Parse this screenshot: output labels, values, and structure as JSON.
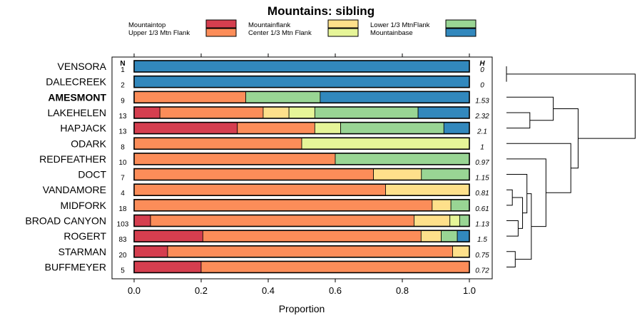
{
  "chart_data": {
    "type": "bar",
    "stacked": true,
    "orientation": "horizontal",
    "title": "Mountains: sibling",
    "xlabel": "Proportion",
    "xlim": [
      0,
      1
    ],
    "xticks": [
      "0.0",
      "0.2",
      "0.4",
      "0.6",
      "0.8",
      "1.0"
    ],
    "n_header": "N",
    "h_header": "H",
    "highlighted_category": "AMESMONT",
    "legend": [
      {
        "name": "Mountaintop",
        "color": "#d53e4f"
      },
      {
        "name": "Upper 1/3 Mtn Flank",
        "color": "#fc8d59"
      },
      {
        "name": "Mountainflank",
        "color": "#fee08b"
      },
      {
        "name": "Center 1/3 Mtn Flank",
        "color": "#e6f598"
      },
      {
        "name": "Lower 1/3 MtnFlank",
        "color": "#99d594"
      },
      {
        "name": "Mountainbase",
        "color": "#3288bd"
      }
    ],
    "rows": [
      {
        "category": "VENSORA",
        "n": "1",
        "h": "0",
        "values": [
          0,
          0,
          0,
          0,
          0,
          1
        ]
      },
      {
        "category": "DALECREEK",
        "n": "2",
        "h": "0",
        "values": [
          0,
          0,
          0,
          0,
          0,
          1
        ]
      },
      {
        "category": "AMESMONT",
        "n": "9",
        "h": "1.53",
        "values": [
          0,
          0.333,
          0,
          0,
          0.222,
          0.445
        ]
      },
      {
        "category": "LAKEHELEN",
        "n": "13",
        "h": "2.32",
        "values": [
          0.077,
          0.308,
          0.077,
          0.077,
          0.308,
          0.153
        ]
      },
      {
        "category": "HAPJACK",
        "n": "13",
        "h": "2.1",
        "values": [
          0.308,
          0.231,
          0,
          0.077,
          0.308,
          0.076
        ]
      },
      {
        "category": "ODARK",
        "n": "8",
        "h": "1",
        "values": [
          0,
          0.5,
          0,
          0.5,
          0,
          0
        ]
      },
      {
        "category": "REDFEATHER",
        "n": "10",
        "h": "0.97",
        "values": [
          0,
          0.6,
          0,
          0,
          0.4,
          0
        ]
      },
      {
        "category": "DOCT",
        "n": "7",
        "h": "1.15",
        "values": [
          0,
          0.714,
          0.143,
          0,
          0.143,
          0
        ]
      },
      {
        "category": "VANDAMORE",
        "n": "4",
        "h": "0.81",
        "values": [
          0,
          0.75,
          0.25,
          0,
          0,
          0
        ]
      },
      {
        "category": "MIDFORK",
        "n": "18",
        "h": "0.61",
        "values": [
          0,
          0.889,
          0.056,
          0,
          0.055,
          0
        ]
      },
      {
        "category": "BROAD CANYON",
        "n": "103",
        "h": "1.13",
        "values": [
          0.049,
          0.786,
          0.107,
          0.029,
          0.029,
          0
        ]
      },
      {
        "category": "ROGERT",
        "n": "83",
        "h": "1.5",
        "values": [
          0.205,
          0.651,
          0.06,
          0,
          0.048,
          0.036
        ]
      },
      {
        "category": "STARMAN",
        "n": "20",
        "h": "0.75",
        "values": [
          0.1,
          0.85,
          0.05,
          0,
          0,
          0
        ]
      },
      {
        "category": "BUFFMEYER",
        "n": "5",
        "h": "0.72",
        "values": [
          0.2,
          0.8,
          0,
          0,
          0,
          0
        ]
      }
    ],
    "dendrogram": {
      "leaf_order": [
        "VENSORA",
        "DALECREEK",
        "AMESMONT",
        "LAKEHELEN",
        "HAPJACK",
        "ODARK",
        "REDFEATHER",
        "DOCT",
        "VANDAMORE",
        "MIDFORK",
        "BROAD CANYON",
        "ROGERT",
        "STARMAN",
        "BUFFMEYER"
      ],
      "merges": [
        {
          "a": 0,
          "b": 1,
          "height": 0.0
        },
        {
          "a": 3,
          "b": 4,
          "height": 0.16
        },
        {
          "a": 8,
          "b": 9,
          "height": 0.04
        },
        {
          "a": 10,
          "b": 11,
          "height": 0.08
        },
        {
          "a": 12,
          "b": 13,
          "height": 0.06
        },
        {
          "a": -3,
          "b": -4,
          "height": 0.11
        },
        {
          "a": 7,
          "b": -6,
          "height": 0.14
        },
        {
          "a": -5,
          "b": -7,
          "height": 0.17
        },
        {
          "a": 6,
          "b": -8,
          "height": 0.27
        },
        {
          "a": 5,
          "b": -9,
          "height": 0.44
        },
        {
          "a": 2,
          "b": -2,
          "height": 0.32
        },
        {
          "a": -11,
          "b": -10,
          "height": 0.49
        },
        {
          "a": -1,
          "b": -12,
          "height": 0.88
        }
      ]
    }
  }
}
